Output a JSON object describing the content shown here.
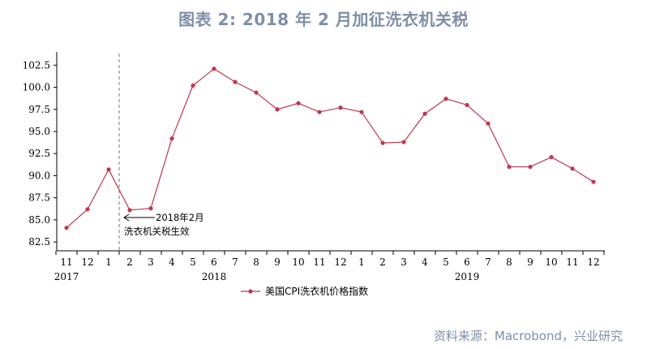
{
  "title": "图表 2:  2018 年 2 月加征洗衣机关税",
  "source": "资料来源：Macrobond，兴业研究",
  "colors": {
    "series": "#c0374d",
    "title": "#7f8fa6",
    "axis": "#000000"
  },
  "chart_data": {
    "type": "line",
    "x": [
      "11",
      "12",
      "1",
      "2",
      "3",
      "4",
      "5",
      "6",
      "7",
      "8",
      "9",
      "10",
      "11",
      "12",
      "1",
      "2",
      "3",
      "4",
      "5",
      "6",
      "7",
      "8",
      "9",
      "10",
      "11",
      "12"
    ],
    "year_labels": [
      {
        "label": "2017",
        "index": 0
      },
      {
        "label": "2018",
        "index": 7
      },
      {
        "label": "2019",
        "index": 19
      }
    ],
    "series": [
      {
        "name": "美国CPI洗衣机价格指数",
        "values": [
          84.1,
          86.2,
          90.7,
          86.1,
          86.3,
          94.2,
          100.2,
          102.1,
          100.6,
          99.4,
          97.5,
          98.2,
          97.2,
          97.7,
          97.2,
          93.7,
          93.8,
          97.0,
          98.7,
          98.0,
          95.9,
          91.0,
          91.0,
          92.1,
          90.8,
          89.3
        ]
      }
    ],
    "yticks": [
      "82.5",
      "85.0",
      "87.5",
      "90.0",
      "92.5",
      "95.0",
      "97.5",
      "100.0",
      "102.5"
    ],
    "ylim": [
      81.5,
      104
    ],
    "annotation": {
      "arrow_text": "2018年2月",
      "text": "洗衣机关税生效",
      "after_index": 2
    },
    "legend_position": "bottom-center",
    "grid": false
  }
}
